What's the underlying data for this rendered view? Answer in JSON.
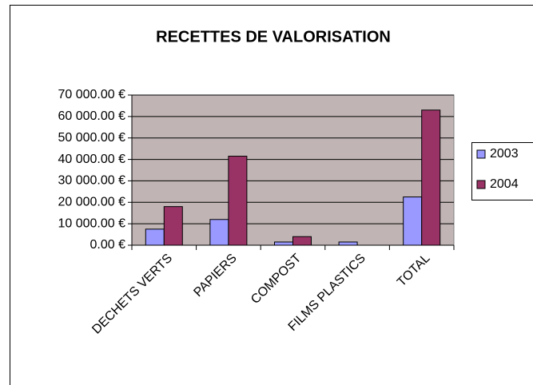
{
  "chart_data": {
    "type": "bar",
    "title": "RECETTES DE VALORISATION",
    "categories": [
      "DECHETS VERTS",
      "PAPIERS",
      "COMPOST",
      "FILMS PLASTICS",
      "TOTAL"
    ],
    "series": [
      {
        "name": "2003",
        "color": "#9999ff",
        "values": [
          7500,
          12000,
          1500,
          1500,
          22500
        ]
      },
      {
        "name": "2004",
        "color": "#993366",
        "values": [
          18000,
          41500,
          4000,
          0,
          63000
        ]
      }
    ],
    "ylim": [
      0,
      70000
    ],
    "yticks": [
      {
        "value": 0,
        "label": "0.00 €"
      },
      {
        "value": 10000,
        "label": "10 000.00 €"
      },
      {
        "value": 20000,
        "label": "20 000.00 €"
      },
      {
        "value": 30000,
        "label": "30 000.00 €"
      },
      {
        "value": 40000,
        "label": "40 000.00 €"
      },
      {
        "value": 50000,
        "label": "50 000.00 €"
      },
      {
        "value": 60000,
        "label": "60 000.00 €"
      },
      {
        "value": 70000,
        "label": "70 000.00 €"
      }
    ],
    "grid": true,
    "plot_background": "#c0b4b4",
    "legend": "right"
  }
}
